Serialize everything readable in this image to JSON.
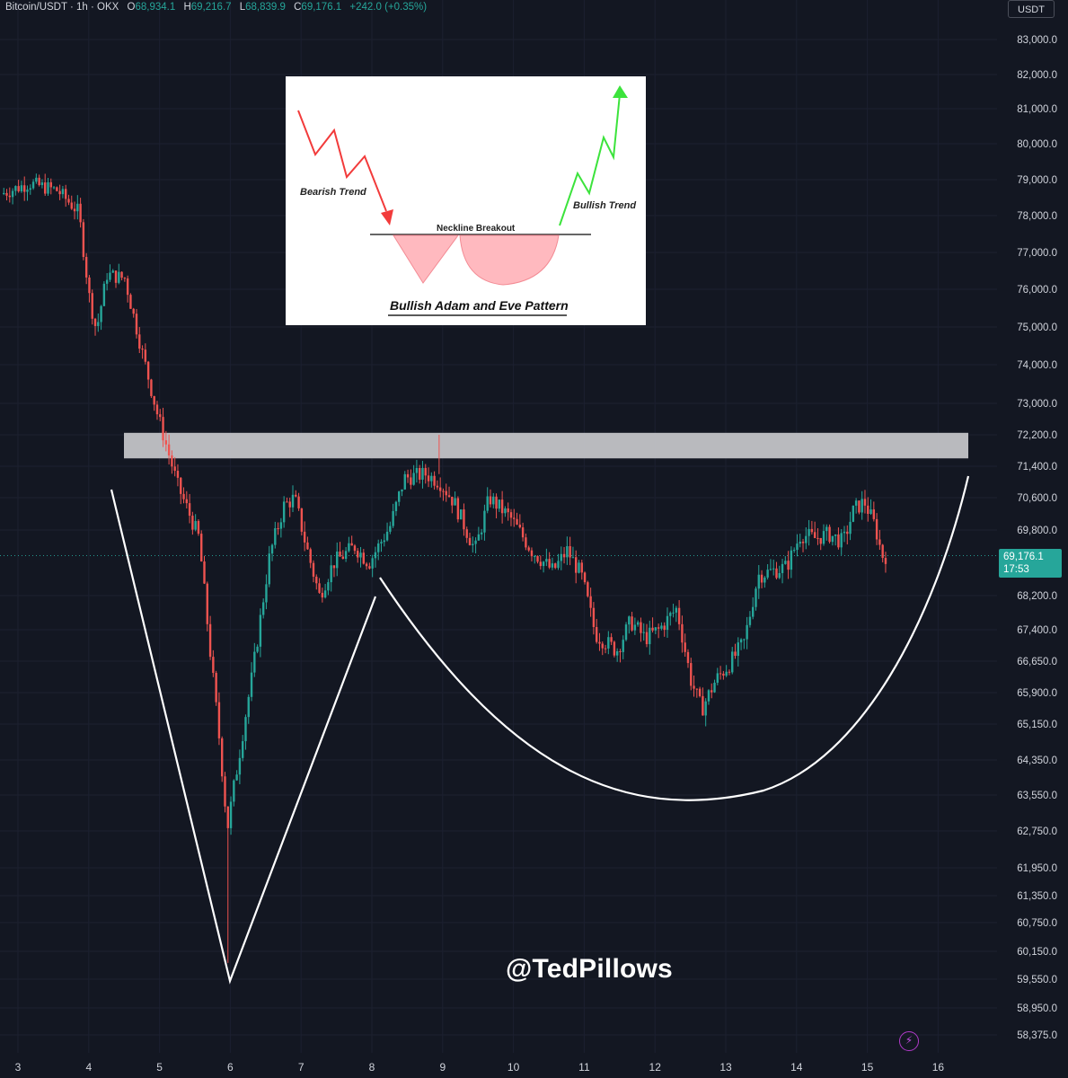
{
  "header": {
    "symbol": "Bitcoin/USDT · 1h · OKX",
    "open_label": "O",
    "open": "68,934.1",
    "high_label": "H",
    "high": "69,216.7",
    "low_label": "L",
    "low": "68,839.9",
    "close_label": "C",
    "close": "69,176.1",
    "change": "+242.0 (+0.35%)"
  },
  "unit_label": "USDT",
  "current_price": {
    "value": "69,176.1",
    "countdown": "17:53"
  },
  "watermark": "@TedPillows",
  "bolt_icon": "lightning-icon",
  "colors": {
    "background": "#131722",
    "up": "#26a69a",
    "down": "#ef5350",
    "axis_text": "#d1d4dc"
  },
  "chart_data": {
    "type": "candlestick",
    "x_ticks": [
      "3",
      "4",
      "5",
      "6",
      "7",
      "8",
      "9",
      "10",
      "11",
      "12",
      "13",
      "14",
      "15",
      "16"
    ],
    "y_ticks": [
      83000,
      82000,
      81000,
      80000,
      79000,
      78000,
      77000,
      76000,
      75000,
      74000,
      73000,
      72200,
      71400,
      70600,
      69800,
      68200,
      67400,
      66650,
      65900,
      65150,
      64350,
      63550,
      62750,
      61950,
      61350,
      60750,
      60150,
      59550,
      58950,
      58375
    ],
    "y_tick_labels": [
      "83,000.0",
      "82,000.0",
      "81,000.0",
      "80,000.0",
      "79,000.0",
      "78,000.0",
      "77,000.0",
      "76,000.0",
      "75,000.0",
      "74,000.0",
      "73,000.0",
      "72,200.0",
      "71,400.0",
      "70,600.0",
      "69,800.0",
      "68,200.0",
      "67,400.0",
      "66,650.0",
      "65,900.0",
      "65,150.0",
      "64,350.0",
      "63,550.0",
      "62,750.0",
      "61,950.0",
      "61,350.0",
      "60,750.0",
      "60,150.0",
      "59,550.0",
      "58,950.0",
      "58,375.0"
    ],
    "price_path_day_close": [
      [
        2.8,
        78600
      ],
      [
        3.2,
        78900
      ],
      [
        3.6,
        78700
      ],
      [
        3.9,
        78100
      ],
      [
        4.05,
        75800
      ],
      [
        4.15,
        74900
      ],
      [
        4.3,
        76400
      ],
      [
        4.55,
        76300
      ],
      [
        4.8,
        74300
      ],
      [
        5.0,
        72800
      ],
      [
        5.3,
        70900
      ],
      [
        5.6,
        69600
      ],
      [
        5.75,
        67000
      ],
      [
        5.9,
        64600
      ],
      [
        6.0,
        62800
      ],
      [
        6.15,
        64300
      ],
      [
        6.35,
        66300
      ],
      [
        6.6,
        69200
      ],
      [
        6.8,
        70400
      ],
      [
        6.95,
        70600
      ],
      [
        7.1,
        69500
      ],
      [
        7.3,
        68200
      ],
      [
        7.5,
        69000
      ],
      [
        7.8,
        69400
      ],
      [
        8.0,
        69000
      ],
      [
        8.3,
        69900
      ],
      [
        8.5,
        71100
      ],
      [
        8.8,
        71200
      ],
      [
        9.0,
        71000
      ],
      [
        9.2,
        70500
      ],
      [
        9.5,
        69300
      ],
      [
        9.7,
        70600
      ],
      [
        10.0,
        70100
      ],
      [
        10.3,
        69300
      ],
      [
        10.6,
        68800
      ],
      [
        10.8,
        69300
      ],
      [
        11.0,
        68700
      ],
      [
        11.2,
        67300
      ],
      [
        11.5,
        66900
      ],
      [
        11.7,
        67600
      ],
      [
        11.9,
        67200
      ],
      [
        12.1,
        67400
      ],
      [
        12.35,
        67900
      ],
      [
        12.55,
        66200
      ],
      [
        12.7,
        65500
      ],
      [
        12.9,
        66200
      ],
      [
        13.1,
        66600
      ],
      [
        13.3,
        67100
      ],
      [
        13.5,
        68700
      ],
      [
        13.7,
        68800
      ],
      [
        13.9,
        68900
      ],
      [
        14.1,
        69700
      ],
      [
        14.3,
        69600
      ],
      [
        14.5,
        69700
      ],
      [
        14.7,
        69500
      ],
      [
        14.85,
        70300
      ],
      [
        15.0,
        70500
      ],
      [
        15.15,
        69900
      ],
      [
        15.25,
        69176
      ]
    ],
    "daily_lows": [
      [
        5.98,
        59900
      ],
      [
        12.7,
        65100
      ]
    ],
    "resistance_zone": [
      71600,
      72250
    ],
    "current_price": 69176.1,
    "inset_image": {
      "title": "Bullish Adam and Eve Pattern",
      "labels": [
        "Bearish Trend",
        "Neckline Breakout",
        "Bullish Trend"
      ]
    }
  }
}
